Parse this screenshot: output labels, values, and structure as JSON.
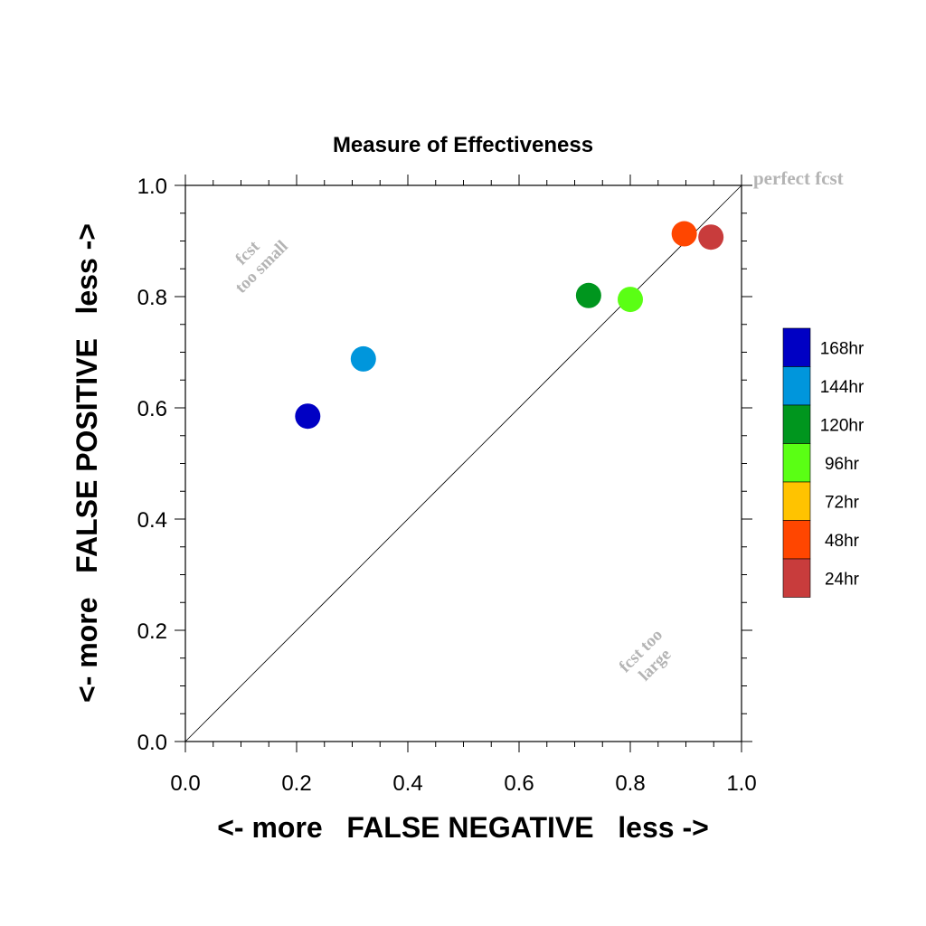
{
  "chart_data": {
    "type": "scatter",
    "title": "Measure of Effectiveness",
    "xlabel": "<- more   FALSE NEGATIVE   less ->",
    "ylabel": "<- more   FALSE POSITIVE   less ->",
    "xlim": [
      0.0,
      1.0
    ],
    "ylim": [
      0.0,
      1.0
    ],
    "xticks": [
      "0.0",
      "0.2",
      "0.4",
      "0.6",
      "0.8",
      "1.0"
    ],
    "yticks": [
      "0.0",
      "0.2",
      "0.4",
      "0.6",
      "0.8",
      "1.0"
    ],
    "grid": false,
    "diagonal_line": true,
    "annotations": {
      "perfect": "perfect fcst",
      "too_small": [
        "fcst",
        "too small"
      ],
      "too_large": [
        "fcst too",
        "large"
      ]
    },
    "legend_placement": "right",
    "legend": [
      {
        "label": "168hr",
        "color": "#0000c4"
      },
      {
        "label": "144hr",
        "color": "#0096dc"
      },
      {
        "label": "120hr",
        "color": "#00961e"
      },
      {
        "label": "96hr",
        "color": "#5aff14"
      },
      {
        "label": "72hr",
        "color": "#ffc300"
      },
      {
        "label": "48hr",
        "color": "#ff4600"
      },
      {
        "label": "24hr",
        "color": "#c83c3c"
      }
    ],
    "points": [
      {
        "series": "168hr",
        "x": 0.22,
        "y": 0.585,
        "color": "#0000c4"
      },
      {
        "series": "144hr",
        "x": 0.32,
        "y": 0.688,
        "color": "#0096dc"
      },
      {
        "series": "120hr",
        "x": 0.725,
        "y": 0.802,
        "color": "#00961e"
      },
      {
        "series": "96hr",
        "x": 0.8,
        "y": 0.795,
        "color": "#5aff14"
      },
      {
        "series": "48hr",
        "x": 0.897,
        "y": 0.913,
        "color": "#ff4600"
      },
      {
        "series": "24hr",
        "x": 0.945,
        "y": 0.907,
        "color": "#c83c3c"
      }
    ]
  }
}
